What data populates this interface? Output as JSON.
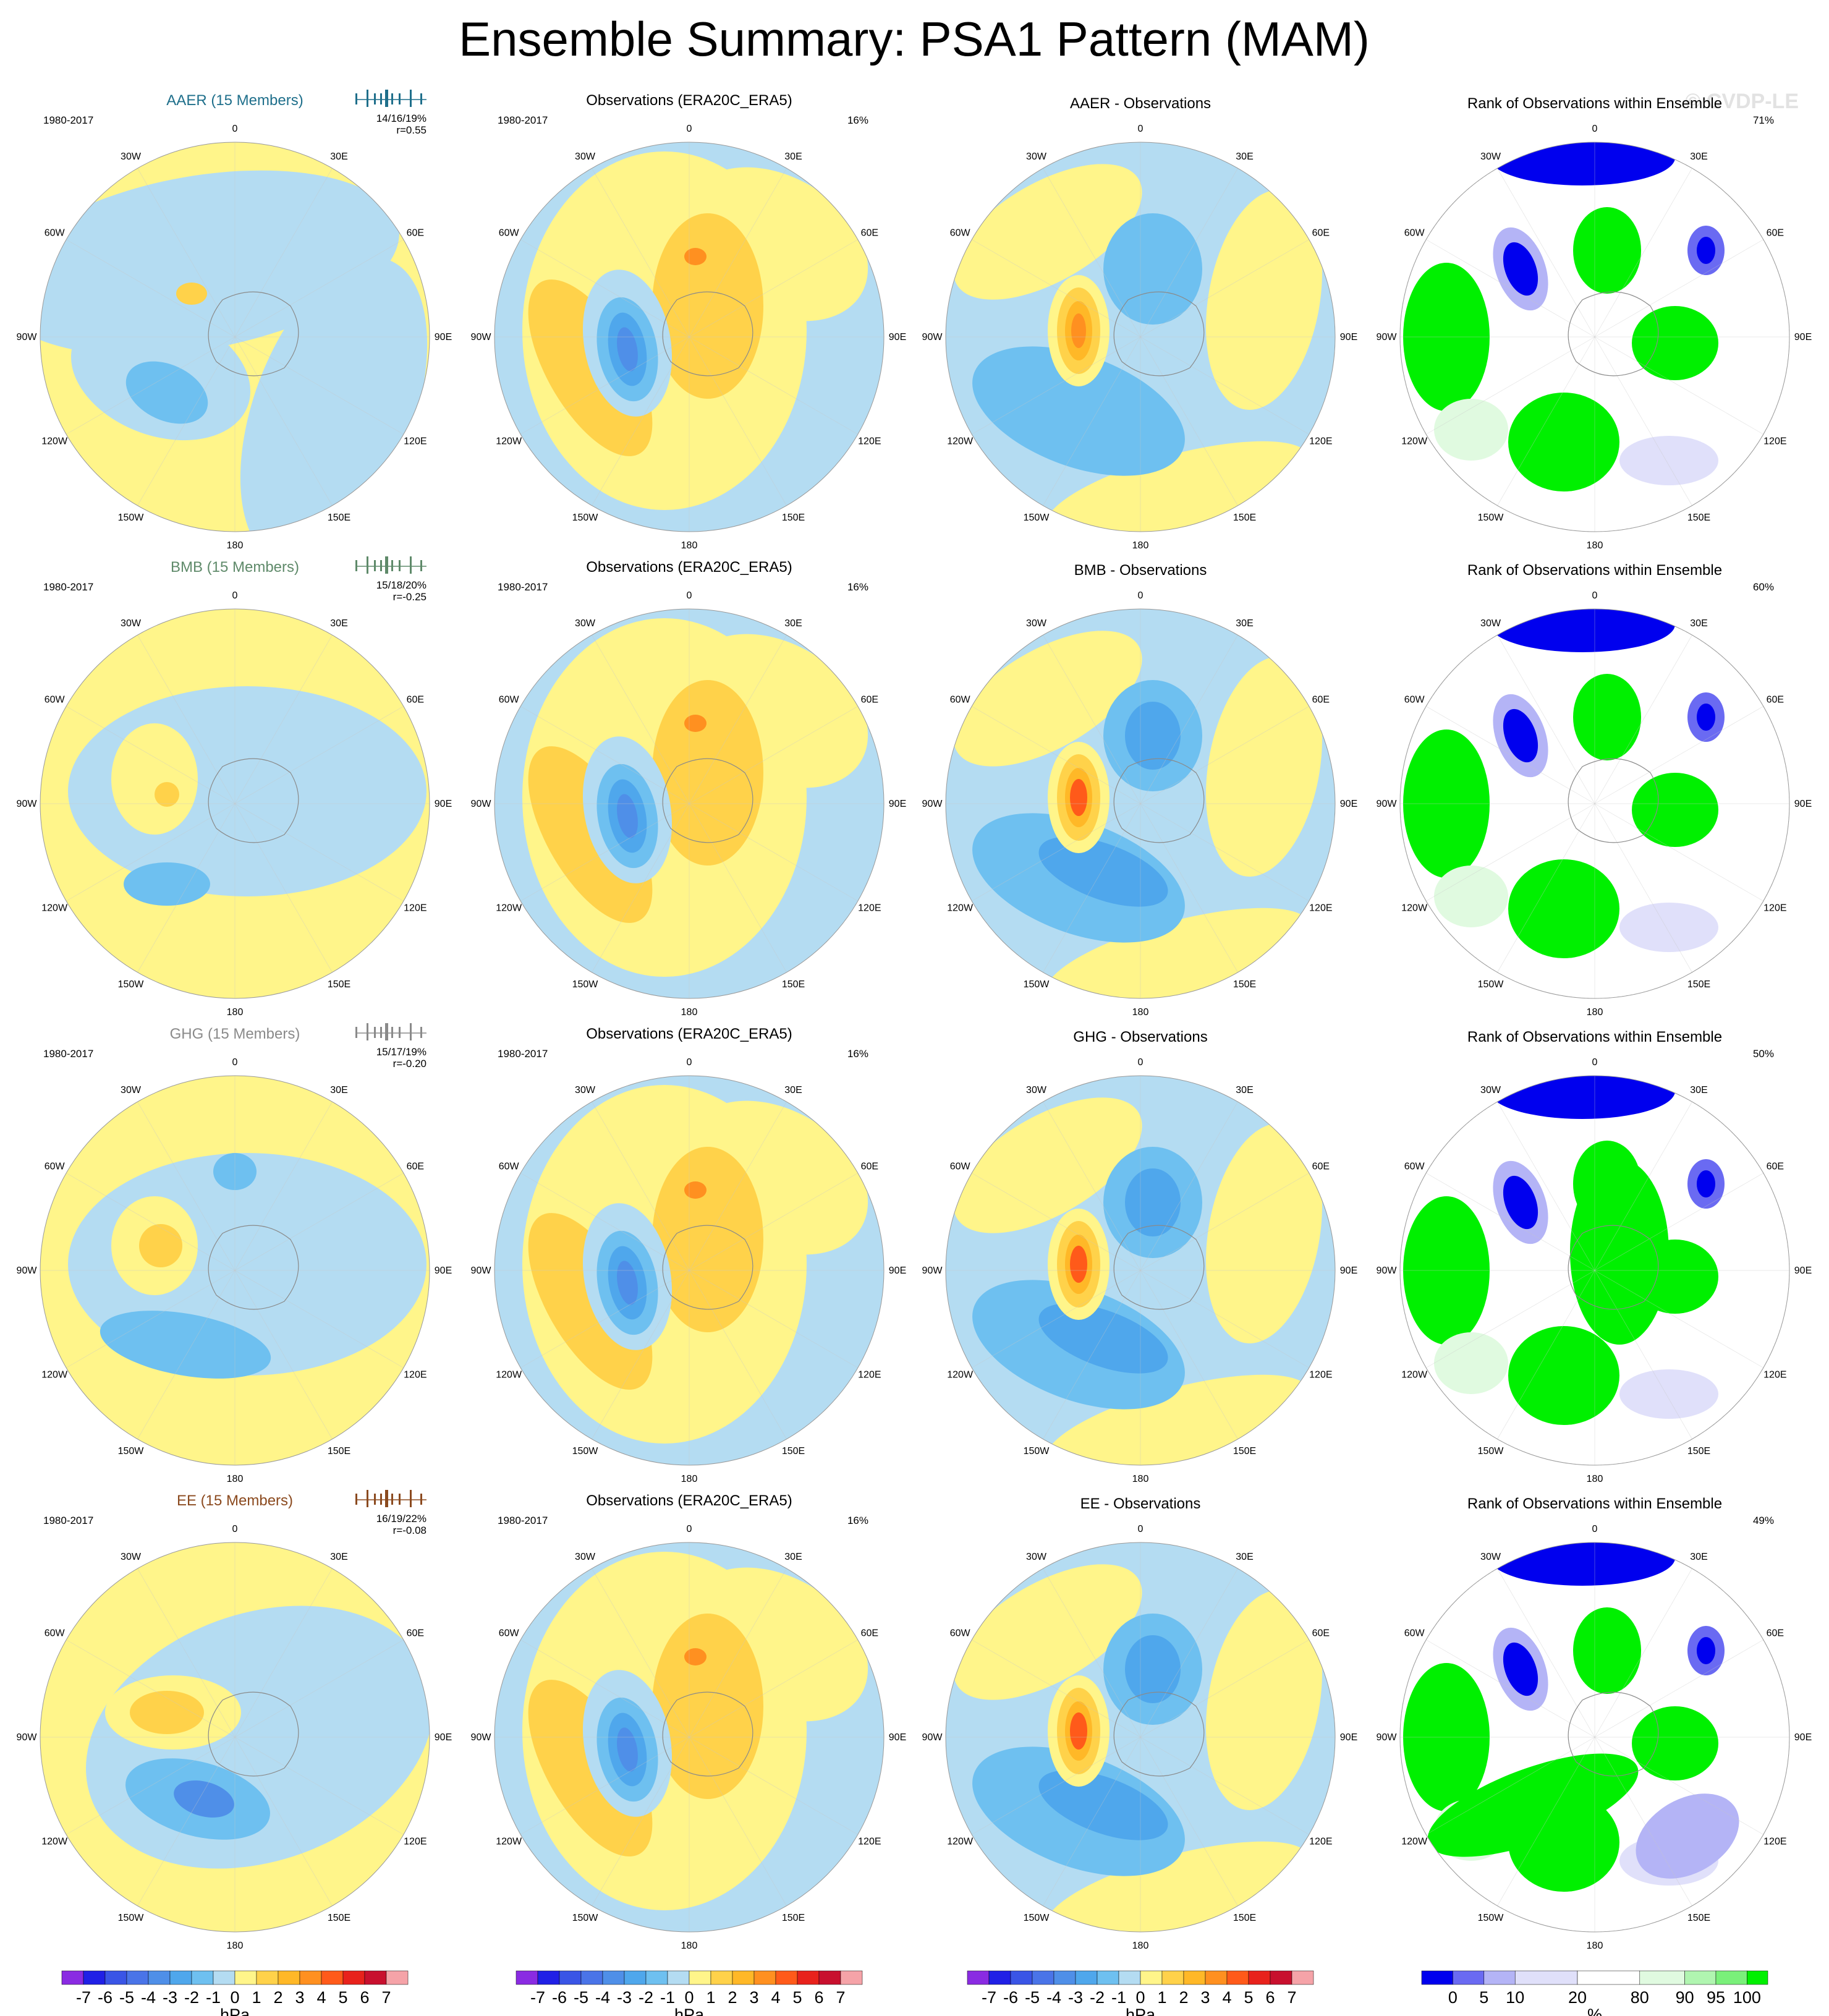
{
  "title": "Ensemble Summary: PSA1 Pattern (MAM)",
  "watermark": "© CVDP-LE",
  "colors": {
    "ens_AAER": "#1f6f8b",
    "ens_BMB": "#5f8a6a",
    "ens_GHG": "#8a8a8a",
    "ens_EE": "#8b4a1f"
  },
  "lon_labels": [
    "0",
    "30E",
    "60E",
    "90E",
    "120E",
    "150E",
    "180",
    "150W",
    "120W",
    "90W",
    "60W",
    "30W"
  ],
  "rows": [
    {
      "ensemble": "AAER",
      "ensemble_title": "AAER (15 Members)",
      "period": "1980-2017",
      "stats": "14/16/19%",
      "corr": "r=0.55",
      "obs_title": "Observations (ERA20C_ERA5)",
      "obs_period": "1980-2017",
      "obs_pct": "16%",
      "diff_title": "AAER - Observations",
      "rank_title": "Rank of Observations within Ensemble",
      "rank_pct": "71%"
    },
    {
      "ensemble": "BMB",
      "ensemble_title": "BMB (15 Members)",
      "period": "1980-2017",
      "stats": "15/18/20%",
      "corr": "r=-0.25",
      "obs_title": "Observations (ERA20C_ERA5)",
      "obs_period": "1980-2017",
      "obs_pct": "16%",
      "diff_title": "BMB - Observations",
      "rank_title": "Rank of Observations within Ensemble",
      "rank_pct": "60%"
    },
    {
      "ensemble": "GHG",
      "ensemble_title": "GHG (15 Members)",
      "period": "1980-2017",
      "stats": "15/17/19%",
      "corr": "r=-0.20",
      "obs_title": "Observations (ERA20C_ERA5)",
      "obs_period": "1980-2017",
      "obs_pct": "16%",
      "diff_title": "GHG - Observations",
      "rank_title": "Rank of Observations within Ensemble",
      "rank_pct": "50%"
    },
    {
      "ensemble": "EE",
      "ensemble_title": "EE (15 Members)",
      "period": "1980-2017",
      "stats": "16/19/22%",
      "corr": "r=-0.08",
      "obs_title": "Observations (ERA20C_ERA5)",
      "obs_period": "1980-2017",
      "obs_pct": "16%",
      "diff_title": "EE - Observations",
      "rank_title": "Rank of Observations within Ensemble",
      "rank_pct": "49%"
    }
  ],
  "chart_data": {
    "type": "heatmap",
    "projection": "south polar stereographic",
    "hpa_colorbar": {
      "unit": "hPa",
      "tick_labels": [
        "-7",
        "-6",
        "-5",
        "-4",
        "-3",
        "-2",
        "-1",
        "0",
        "1",
        "2",
        "3",
        "4",
        "5",
        "6",
        "7"
      ],
      "colors": [
        "#8a2be2",
        "#2020e6",
        "#3a55e6",
        "#4a74e8",
        "#4f8fe8",
        "#4fa7ec",
        "#6ec0f0",
        "#b4dcf2",
        "#fff58a",
        "#ffd24a",
        "#ffb827",
        "#ff9020",
        "#ff5a1a",
        "#e8221c",
        "#c8102e",
        "#f5a3a8"
      ]
    },
    "rank_colorbar": {
      "unit": "%",
      "tick_labels": [
        "0",
        "5",
        "10",
        "20",
        "80",
        "90",
        "95",
        "100"
      ],
      "colors": [
        "#0000ee",
        "#6a6af2",
        "#b4b4f6",
        "#e0e0fa",
        "#ffffff",
        "#e0fae0",
        "#b0f5b0",
        "#7af07a",
        "#00f000"
      ]
    }
  }
}
